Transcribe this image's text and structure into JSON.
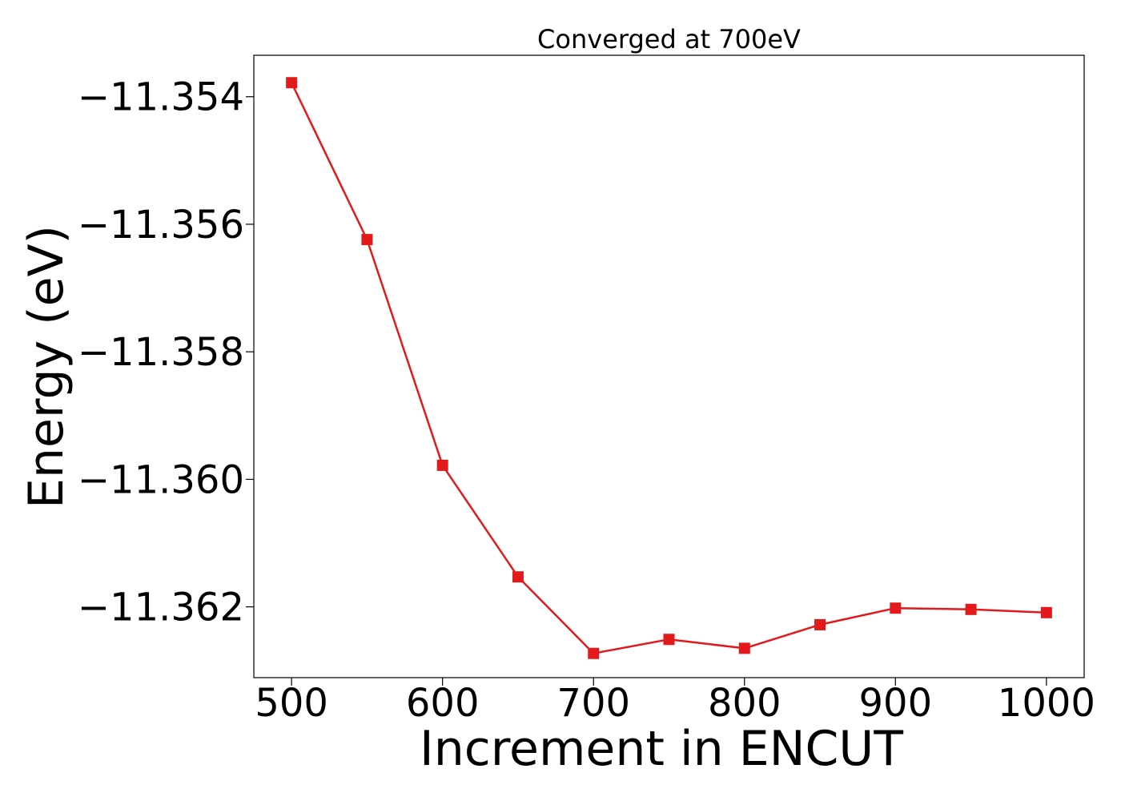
{
  "chart_data": {
    "type": "line",
    "title": "Converged at 700eV",
    "xlabel": "Increment in ENCUT",
    "ylabel": "Energy (eV)",
    "xlim": [
      475,
      1025
    ],
    "ylim": [
      -11.36311,
      -11.35335
    ],
    "x_ticks": [
      500,
      600,
      700,
      800,
      900,
      1000
    ],
    "x_tick_labels": [
      "500",
      "600",
      "700",
      "800",
      "900",
      "1000"
    ],
    "y_ticks": [
      -11.354,
      -11.356,
      -11.358,
      -11.36,
      -11.362
    ],
    "y_tick_labels": [
      "−11.354",
      "−11.356",
      "−11.358",
      "−11.360",
      "−11.362"
    ],
    "grid": false,
    "series": [
      {
        "color": "#e31a1c",
        "marker": "square",
        "x": [
          500,
          550,
          600,
          650,
          700,
          750,
          800,
          850,
          900,
          950,
          1000
        ],
        "y": [
          -11.35378,
          -11.35624,
          -11.35978,
          -11.36153,
          -11.36273,
          -11.36251,
          -11.36265,
          -11.36228,
          -11.36202,
          -11.36204,
          -11.36209
        ]
      }
    ]
  }
}
